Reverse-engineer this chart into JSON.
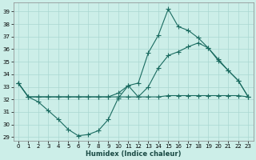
{
  "xlabel": "Humidex (Indice chaleur)",
  "background_color": "#cceee8",
  "grid_color": "#aad8d2",
  "line_color": "#1a6b60",
  "xlim": [
    -0.5,
    23.5
  ],
  "ylim": [
    28.7,
    39.7
  ],
  "yticks": [
    29,
    30,
    31,
    32,
    33,
    34,
    35,
    36,
    37,
    38,
    39
  ],
  "xticks": [
    0,
    1,
    2,
    3,
    4,
    5,
    6,
    7,
    8,
    9,
    10,
    11,
    12,
    13,
    14,
    15,
    16,
    17,
    18,
    19,
    20,
    21,
    22,
    23
  ],
  "line1_x": [
    0,
    1,
    2,
    3,
    4,
    5,
    6,
    7,
    8,
    9,
    10,
    11,
    12,
    13,
    14,
    15,
    16,
    17,
    18,
    19,
    20,
    21,
    22,
    23
  ],
  "line1_y": [
    33.3,
    32.2,
    31.8,
    31.1,
    30.4,
    29.6,
    29.1,
    29.2,
    29.5,
    30.4,
    32.1,
    33.1,
    33.3,
    35.7,
    37.1,
    39.2,
    37.8,
    37.5,
    36.9,
    36.1,
    35.2,
    34.3,
    33.5,
    32.2
  ],
  "line2_x": [
    0,
    1,
    2,
    3,
    4,
    5,
    6,
    7,
    8,
    9,
    10,
    11,
    12,
    13,
    14,
    15,
    16,
    17,
    18,
    19,
    20,
    21,
    22,
    23
  ],
  "line2_y": [
    33.3,
    32.2,
    32.2,
    32.2,
    32.2,
    32.2,
    32.2,
    32.2,
    32.2,
    32.2,
    32.5,
    33.1,
    32.2,
    33.0,
    34.5,
    35.5,
    35.8,
    36.2,
    36.5,
    36.1,
    35.1,
    34.3,
    33.5,
    32.2
  ],
  "line3_x": [
    0,
    1,
    2,
    3,
    4,
    5,
    6,
    7,
    8,
    9,
    10,
    11,
    12,
    13,
    14,
    15,
    16,
    17,
    18,
    19,
    20,
    21,
    22,
    23
  ],
  "line3_y": [
    33.3,
    32.2,
    32.2,
    32.2,
    32.2,
    32.2,
    32.2,
    32.2,
    32.2,
    32.2,
    32.2,
    32.2,
    32.2,
    32.2,
    32.2,
    32.3,
    32.3,
    32.3,
    32.3,
    32.3,
    32.3,
    32.3,
    32.3,
    32.2
  ],
  "figsize": [
    3.2,
    2.0
  ],
  "dpi": 100
}
